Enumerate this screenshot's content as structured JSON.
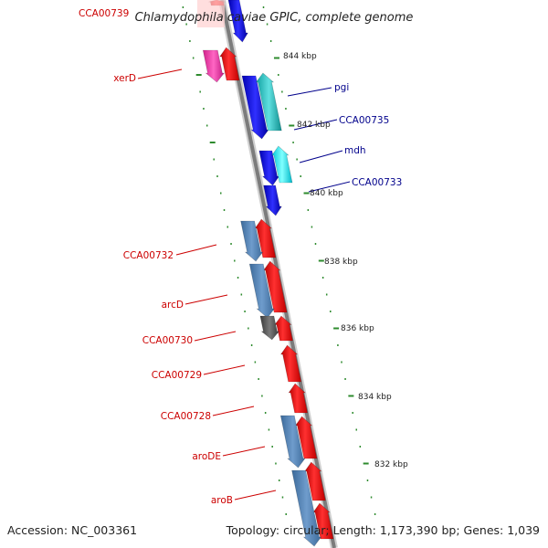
{
  "title": "Chlamydophila caviae GPIC, complete genome",
  "footer": {
    "accession": "Accession: NC_003361",
    "topology": "Topology: circular; Length: 1,173,390 bp; Genes: 1,039"
  },
  "colors": {
    "forward_strand": "#ff0000",
    "reverse_strand": "#4a7fb5",
    "label_forward": "#cc0000",
    "label_reverse": "#00008b",
    "backbone": "#888888",
    "gc_ticks": "#2e8b2e"
  },
  "scale_labels": [
    "844 kbp",
    "842 kbp",
    "840 kbp",
    "838 kbp",
    "836 kbp",
    "834 kbp",
    "832 kbp"
  ],
  "genes_left": [
    {
      "name": "CCA00739"
    },
    {
      "name": "xerD"
    },
    {
      "name": "CCA00732"
    },
    {
      "name": "arcD"
    },
    {
      "name": "CCA00730"
    },
    {
      "name": "CCA00729"
    },
    {
      "name": "CCA00728"
    },
    {
      "name": "aroDE"
    },
    {
      "name": "aroB"
    }
  ],
  "genes_right": [
    {
      "name": "pgi"
    },
    {
      "name": "CCA00735"
    },
    {
      "name": "mdh"
    },
    {
      "name": "CCA00733"
    }
  ]
}
